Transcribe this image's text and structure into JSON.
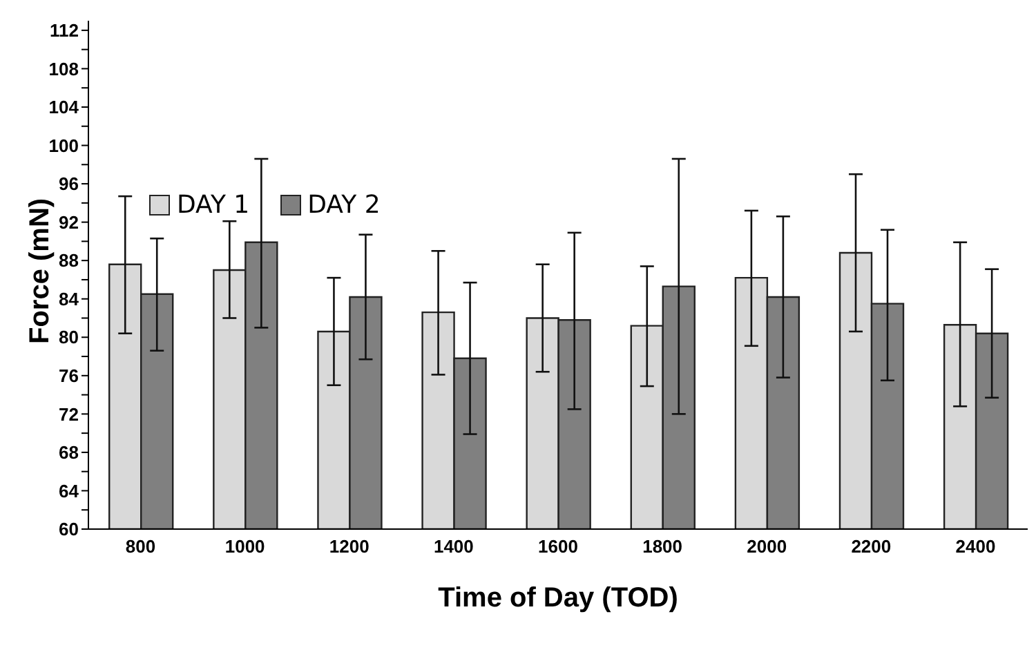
{
  "chart_data": {
    "type": "bar",
    "xlabel": "Time of Day (TOD)",
    "ylabel": "Force (mN)",
    "categories": [
      "800",
      "1000",
      "1200",
      "1400",
      "1600",
      "1800",
      "2000",
      "2200",
      "2400"
    ],
    "series": [
      {
        "name": "DAY 1",
        "color": "#d9d9d9",
        "values": [
          87.6,
          87.0,
          80.6,
          82.6,
          82.0,
          81.2,
          86.2,
          88.8,
          81.3
        ],
        "errors": [
          [
            80.4,
            94.7
          ],
          [
            82.0,
            92.1
          ],
          [
            75.0,
            86.2
          ],
          [
            76.1,
            89.0
          ],
          [
            76.4,
            87.6
          ],
          [
            74.9,
            87.4
          ],
          [
            79.1,
            93.2
          ],
          [
            80.6,
            97.0
          ],
          [
            72.8,
            89.9
          ]
        ]
      },
      {
        "name": "DAY 2",
        "color": "#808080",
        "values": [
          84.5,
          89.9,
          84.2,
          77.8,
          81.8,
          85.3,
          84.2,
          83.5,
          80.4
        ],
        "errors": [
          [
            78.6,
            90.3
          ],
          [
            81.0,
            98.6
          ],
          [
            77.7,
            90.7
          ],
          [
            69.9,
            85.7
          ],
          [
            72.5,
            90.9
          ],
          [
            72.0,
            98.6
          ],
          [
            75.8,
            92.6
          ],
          [
            75.5,
            91.2
          ],
          [
            73.7,
            87.1
          ]
        ]
      }
    ],
    "ylim": [
      60,
      113
    ],
    "yticks": [
      60,
      {
        "value": 62,
        "label": null
      },
      64,
      {
        "value": 66,
        "label": null
      },
      68,
      {
        "value": 70,
        "label": null
      },
      72,
      {
        "value": 74,
        "label": null
      },
      76,
      {
        "value": 78,
        "label": null
      },
      80,
      {
        "value": 82,
        "label": null
      },
      84,
      {
        "value": 86,
        "label": null
      },
      88,
      {
        "value": 90,
        "label": null
      },
      92,
      {
        "value": 94,
        "label": null
      },
      96,
      {
        "value": 98,
        "label": null
      },
      100,
      {
        "value": 102,
        "label": null
      },
      104,
      {
        "value": 106,
        "label": null
      },
      108,
      {
        "value": 110,
        "label": null
      },
      112
    ],
    "grid": false,
    "legend": "top left"
  }
}
